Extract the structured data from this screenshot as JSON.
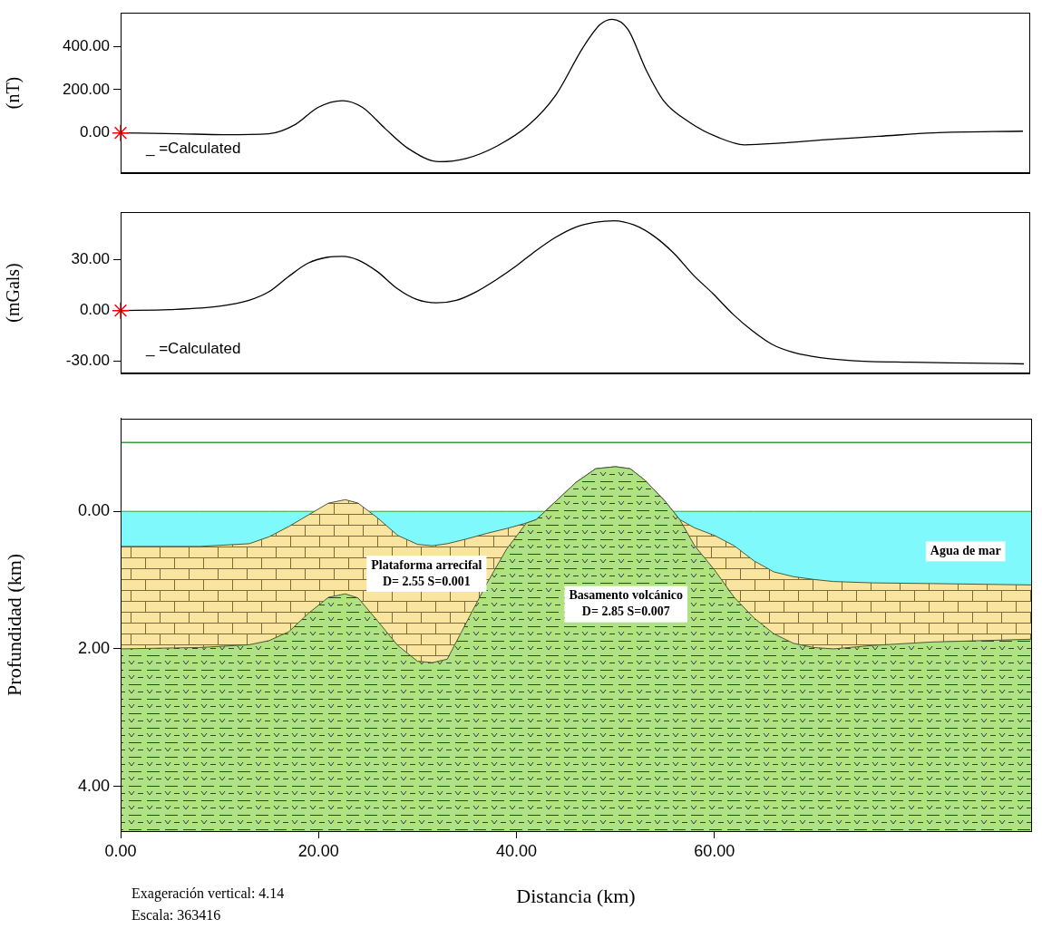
{
  "chart_data": [
    {
      "type": "line",
      "ylabel": "(nT)",
      "annotation": "_ =Calculated",
      "xlim": [
        0,
        92
      ],
      "ylim": [
        -185,
        555
      ],
      "yticks": [
        {
          "value": 0,
          "label": "0.00"
        },
        {
          "value": 200,
          "label": "200.00"
        },
        {
          "value": 400,
          "label": "400.00"
        }
      ],
      "grid": false,
      "tick_labels": "y",
      "series": [
        {
          "color": "#000000",
          "x": [
            0,
            5.9,
            10.5,
            15,
            17.7,
            20,
            22.5,
            24.5,
            26.8,
            29.1,
            32.3,
            35,
            38.2,
            41.4,
            44.1,
            46.8,
            48.6,
            49.8,
            51.4,
            53.2,
            55,
            57.7,
            60.5,
            63.2,
            66.8,
            71.4,
            76.8,
            82.3,
            91.4
          ],
          "values": [
            0,
            -4,
            -8,
            -4,
            39,
            118,
            149,
            118,
            20,
            -71,
            -133,
            -118,
            -59,
            39,
            176,
            392,
            502,
            525,
            478,
            294,
            149,
            47,
            -20,
            -55,
            -47,
            -31,
            -16,
            0,
            8
          ]
        },
        {
          "color": "#ff0000",
          "marker": "star",
          "x": [
            0
          ],
          "values": [
            0
          ]
        }
      ]
    },
    {
      "type": "line",
      "ylabel": "(mGals)",
      "annotation": "_ =Calculated",
      "xlim": [
        0,
        92
      ],
      "ylim": [
        -37,
        58
      ],
      "yticks": [
        {
          "value": -30,
          "label": "-30.00"
        },
        {
          "value": 0,
          "label": "0.00"
        },
        {
          "value": 30,
          "label": "30.00"
        }
      ],
      "grid": false,
      "tick_labels": "y",
      "series": [
        {
          "color": "#000000",
          "x": [
            0,
            5,
            10,
            13,
            15,
            17,
            19,
            21,
            22.5,
            24,
            26,
            28,
            30,
            32,
            34,
            36,
            38,
            40,
            42,
            44,
            46,
            48,
            50,
            52,
            54,
            56,
            58,
            60,
            62,
            64,
            66,
            68,
            70,
            74,
            80,
            86,
            91.5
          ],
          "values": [
            0,
            0.5,
            2.5,
            6,
            11,
            20,
            28,
            31.5,
            32,
            30,
            23,
            13,
            6.5,
            4.5,
            6,
            11,
            18,
            26,
            35,
            43,
            49,
            52,
            53,
            50.5,
            44,
            34,
            21,
            10,
            -2,
            -12,
            -20,
            -24.5,
            -27,
            -29.5,
            -30.5,
            -31,
            -31.5
          ]
        },
        {
          "color": "#ff0000",
          "marker": "star",
          "x": [
            0
          ],
          "values": [
            0
          ]
        }
      ]
    },
    {
      "type": "area",
      "xlabel": "Distancia (km)",
      "ylabel": "Profundidad (km)",
      "notes": [
        "Exageración vertical: 4.14",
        "Escala: 363416"
      ],
      "xlim": [
        0,
        92
      ],
      "ylim": [
        4.65,
        -1.35
      ],
      "xticks": [
        {
          "value": 0,
          "label": "0.00"
        },
        {
          "value": 20,
          "label": "20.00"
        },
        {
          "value": 40,
          "label": "40.00"
        },
        {
          "value": 60,
          "label": "60.00"
        }
      ],
      "yticks": [
        {
          "value": 0,
          "label": "0.00"
        },
        {
          "value": 2,
          "label": "2.00"
        },
        {
          "value": 4,
          "label": "4.00"
        }
      ],
      "grid": false,
      "x": [
        0,
        8,
        13,
        15,
        17,
        19,
        21,
        22.7,
        24,
        26,
        28,
        30,
        31.5,
        33,
        35,
        37,
        39,
        41,
        42,
        44,
        46,
        48,
        50,
        51.5,
        53,
        55,
        56.5,
        58,
        60,
        62,
        64,
        66,
        68,
        70,
        72,
        76,
        82,
        92
      ],
      "series": [
        {
          "name": "Agua de mar",
          "type": "area",
          "color": "#7ff9fb",
          "values": [
            0,
            0,
            0,
            0,
            0,
            0,
            0,
            0,
            0,
            0,
            0,
            0,
            0,
            0,
            0,
            0,
            0,
            0,
            0,
            0,
            0,
            0,
            0,
            0,
            0,
            0,
            0,
            0,
            0,
            0,
            0,
            0,
            0,
            0,
            0,
            0,
            0,
            0
          ]
        },
        {
          "name": "Plataforma arrecifal",
          "annotation": "D= 2.55 S=0.001",
          "type": "area",
          "color": "#f9e5a0",
          "values": [
            0.51,
            0.51,
            0.47,
            0.37,
            0.22,
            0.05,
            -0.12,
            -0.17,
            -0.12,
            0.1,
            0.35,
            0.48,
            0.5,
            0.47,
            0.4,
            0.32,
            0.25,
            0.17,
            0.12,
            -0.15,
            -0.42,
            -0.62,
            -0.65,
            -0.62,
            -0.45,
            -0.15,
            0.12,
            0.24,
            0.35,
            0.5,
            0.72,
            0.88,
            0.95,
            0.99,
            1.02,
            1.04,
            1.05,
            1.07
          ]
        },
        {
          "name": "Basamento volcánico",
          "annotation": "D= 2.85 S=0.007",
          "type": "area",
          "color": "#aee283",
          "values": [
            2.0,
            1.98,
            1.94,
            1.88,
            1.75,
            1.48,
            1.25,
            1.2,
            1.26,
            1.6,
            1.95,
            2.18,
            2.2,
            2.15,
            1.6,
            1.05,
            0.55,
            0.17,
            0.12,
            -0.15,
            -0.42,
            -0.62,
            -0.65,
            -0.62,
            -0.45,
            -0.15,
            0.12,
            0.5,
            0.85,
            1.25,
            1.55,
            1.78,
            1.92,
            1.98,
            2.0,
            1.95,
            1.9,
            1.86
          ]
        },
        {
          "type": "line",
          "color": "#3d9b3d",
          "values": [
            -1,
            -1,
            -1,
            -1,
            -1,
            -1,
            -1,
            -1,
            -1,
            -1,
            -1,
            -1,
            -1,
            -1,
            -1,
            -1,
            -1,
            -1,
            -1,
            -1,
            -1,
            -1,
            -1,
            -1,
            -1,
            -1,
            -1,
            -1,
            -1,
            -1,
            -1,
            -1,
            -1,
            -1,
            -1,
            -1,
            -1,
            -1
          ]
        }
      ]
    }
  ]
}
